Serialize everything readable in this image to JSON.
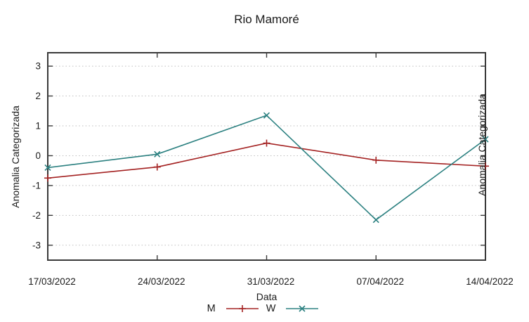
{
  "chart_data": {
    "type": "line",
    "title": "Rio Mamoré",
    "xlabel": "Data",
    "ylabel": "Anomalia Categorizada",
    "categories": [
      "17/03/2022",
      "24/03/2022",
      "31/03/2022",
      "07/04/2022",
      "14/04/2022"
    ],
    "series": [
      {
        "name": "M",
        "marker": "plus",
        "color": "#a42222",
        "values": [
          -0.75,
          -0.38,
          0.42,
          -0.15,
          -0.35
        ]
      },
      {
        "name": "W",
        "marker": "cross",
        "color": "#2b8080",
        "values": [
          -0.4,
          0.05,
          1.35,
          -2.15,
          0.55
        ]
      }
    ],
    "yticks": [
      -3,
      -2,
      -1,
      0,
      1,
      2,
      3
    ],
    "ylim": [
      -3.5,
      3.45
    ],
    "grid": "horizontal-dotted",
    "legend_position": "bottom-center"
  },
  "adjacent_chart_fragment": {
    "ylabel": "Anomalia Categorizada"
  },
  "colors": {
    "background": "#ffffff",
    "text": "#1a1a1a",
    "plot_border": "#3a3a3a",
    "gridline": "#bdbdbd",
    "series_m": "#a42222",
    "series_w": "#2b8080"
  }
}
